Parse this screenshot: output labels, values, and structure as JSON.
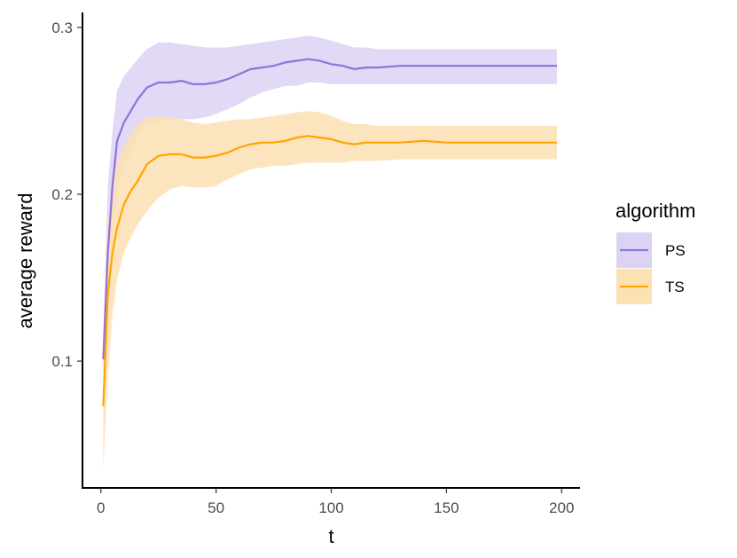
{
  "chart_data": {
    "type": "line",
    "xlabel": "t",
    "ylabel": "average reward",
    "xlim": [
      -8,
      208
    ],
    "ylim": [
      0.024,
      0.309
    ],
    "xticks": [
      0,
      50,
      100,
      150,
      200
    ],
    "yticks": [
      0.1,
      0.2,
      0.3
    ],
    "x_tick_labels": [
      "0",
      "50",
      "100",
      "150",
      "200"
    ],
    "y_tick_labels": [
      "0.1",
      "0.2",
      "0.3"
    ],
    "grid": false,
    "legend": {
      "title": "algorithm",
      "placement": "right"
    },
    "series": [
      {
        "name": "PS",
        "color": "#9370DB",
        "fill": "#DCD2F3",
        "x": [
          1,
          3,
          5,
          7,
          10,
          13,
          16,
          20,
          25,
          30,
          35,
          40,
          45,
          50,
          55,
          60,
          65,
          70,
          75,
          80,
          85,
          90,
          95,
          100,
          105,
          110,
          115,
          120,
          130,
          140,
          150,
          160,
          170,
          180,
          190,
          198
        ],
        "y": [
          0.101,
          0.165,
          0.205,
          0.232,
          0.243,
          0.25,
          0.257,
          0.264,
          0.267,
          0.267,
          0.268,
          0.266,
          0.266,
          0.267,
          0.269,
          0.272,
          0.275,
          0.276,
          0.277,
          0.279,
          0.28,
          0.281,
          0.28,
          0.278,
          0.277,
          0.275,
          0.276,
          0.276,
          0.277,
          0.277,
          0.277,
          0.277,
          0.277,
          0.277,
          0.277,
          0.277
        ],
        "lower": [
          0.086,
          0.125,
          0.172,
          0.2,
          0.215,
          0.225,
          0.234,
          0.241,
          0.244,
          0.244,
          0.245,
          0.245,
          0.246,
          0.248,
          0.251,
          0.254,
          0.258,
          0.261,
          0.263,
          0.265,
          0.265,
          0.267,
          0.267,
          0.266,
          0.266,
          0.266,
          0.266,
          0.266,
          0.266,
          0.266,
          0.266,
          0.266,
          0.266,
          0.266,
          0.266,
          0.266
        ],
        "upper": [
          0.116,
          0.205,
          0.238,
          0.262,
          0.271,
          0.276,
          0.281,
          0.287,
          0.291,
          0.291,
          0.29,
          0.289,
          0.288,
          0.288,
          0.288,
          0.289,
          0.29,
          0.291,
          0.292,
          0.293,
          0.294,
          0.295,
          0.294,
          0.292,
          0.29,
          0.288,
          0.288,
          0.287,
          0.287,
          0.287,
          0.287,
          0.287,
          0.287,
          0.287,
          0.287,
          0.287
        ]
      },
      {
        "name": "TS",
        "color": "#FFA500",
        "fill": "#FCE1B3",
        "x": [
          1,
          3,
          5,
          7,
          10,
          13,
          16,
          20,
          25,
          30,
          35,
          40,
          45,
          50,
          55,
          60,
          65,
          70,
          75,
          80,
          85,
          90,
          95,
          100,
          105,
          110,
          115,
          120,
          130,
          140,
          150,
          160,
          170,
          180,
          190,
          198
        ],
        "y": [
          0.073,
          0.14,
          0.165,
          0.18,
          0.194,
          0.202,
          0.208,
          0.218,
          0.223,
          0.224,
          0.224,
          0.222,
          0.222,
          0.223,
          0.225,
          0.228,
          0.23,
          0.231,
          0.231,
          0.232,
          0.234,
          0.235,
          0.234,
          0.233,
          0.231,
          0.23,
          0.231,
          0.231,
          0.231,
          0.232,
          0.231,
          0.231,
          0.231,
          0.231,
          0.231,
          0.231
        ],
        "lower": [
          0.035,
          0.09,
          0.128,
          0.149,
          0.165,
          0.174,
          0.182,
          0.19,
          0.198,
          0.203,
          0.205,
          0.204,
          0.204,
          0.205,
          0.209,
          0.212,
          0.215,
          0.216,
          0.217,
          0.217,
          0.218,
          0.219,
          0.219,
          0.219,
          0.219,
          0.22,
          0.22,
          0.22,
          0.221,
          0.221,
          0.221,
          0.221,
          0.221,
          0.221,
          0.221,
          0.221
        ],
        "upper": [
          0.11,
          0.185,
          0.205,
          0.218,
          0.229,
          0.236,
          0.242,
          0.246,
          0.247,
          0.246,
          0.245,
          0.243,
          0.242,
          0.243,
          0.244,
          0.245,
          0.245,
          0.246,
          0.247,
          0.248,
          0.249,
          0.25,
          0.249,
          0.247,
          0.244,
          0.242,
          0.242,
          0.241,
          0.241,
          0.241,
          0.241,
          0.241,
          0.241,
          0.241,
          0.241,
          0.241
        ]
      }
    ]
  }
}
